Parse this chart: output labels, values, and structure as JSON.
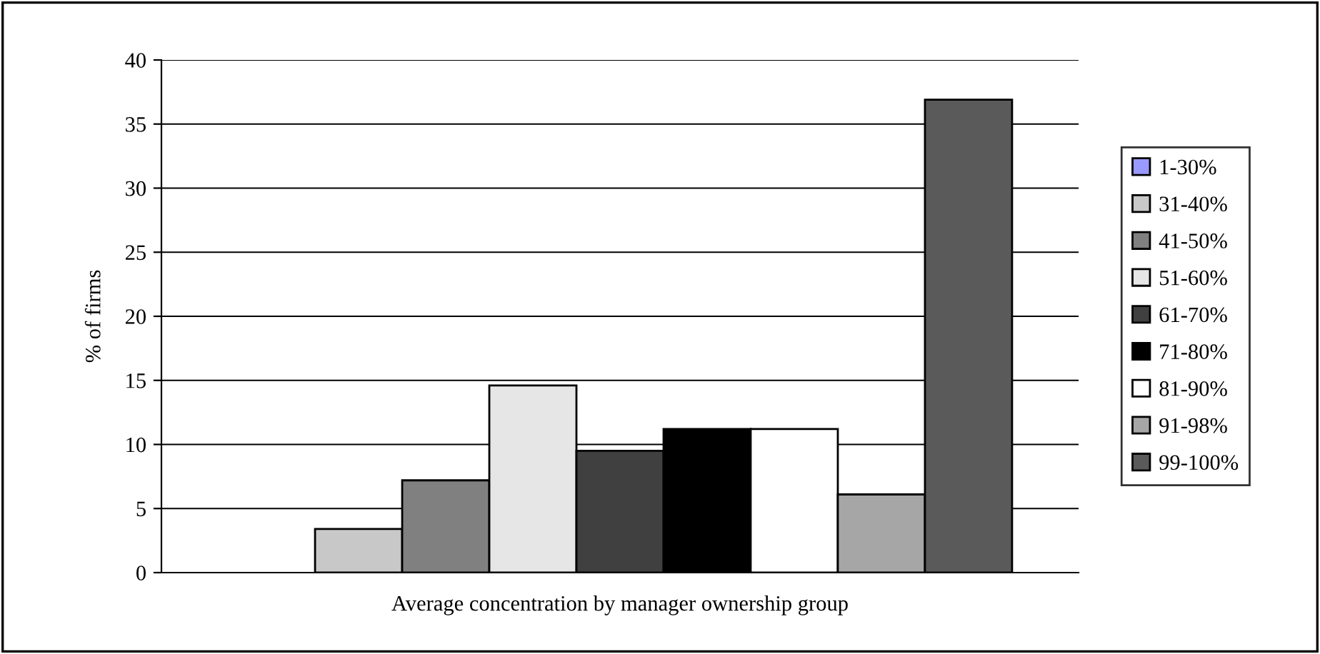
{
  "chart_data": {
    "type": "bar",
    "xlabel": "Average concentration by manager ownership group",
    "ylabel": "% of firms",
    "categories": [
      null
    ],
    "series": [
      {
        "name": "1-30%",
        "color": "#9999ff",
        "values": [
          0
        ]
      },
      {
        "name": "31-40%",
        "color": "#c8c8c8",
        "values": [
          3.4
        ]
      },
      {
        "name": "41-50%",
        "color": "#808080",
        "values": [
          7.2
        ]
      },
      {
        "name": "51-60%",
        "color": "#e6e6e6",
        "values": [
          14.6
        ]
      },
      {
        "name": "61-70%",
        "color": "#404040",
        "values": [
          9.5
        ]
      },
      {
        "name": "71-80%",
        "color": "#000000",
        "values": [
          11.2
        ]
      },
      {
        "name": "81-90%",
        "color": "#ffffff",
        "values": [
          11.2
        ]
      },
      {
        "name": "91-98%",
        "color": "#a6a6a6",
        "values": [
          6.1
        ]
      },
      {
        "name": "99-100%",
        "color": "#5a5a5a",
        "values": [
          36.9
        ]
      }
    ],
    "ylim": [
      0,
      40
    ],
    "yticks": [
      0,
      5,
      10,
      15,
      20,
      25,
      30,
      35,
      40
    ],
    "grid": "y",
    "legend": "right"
  }
}
